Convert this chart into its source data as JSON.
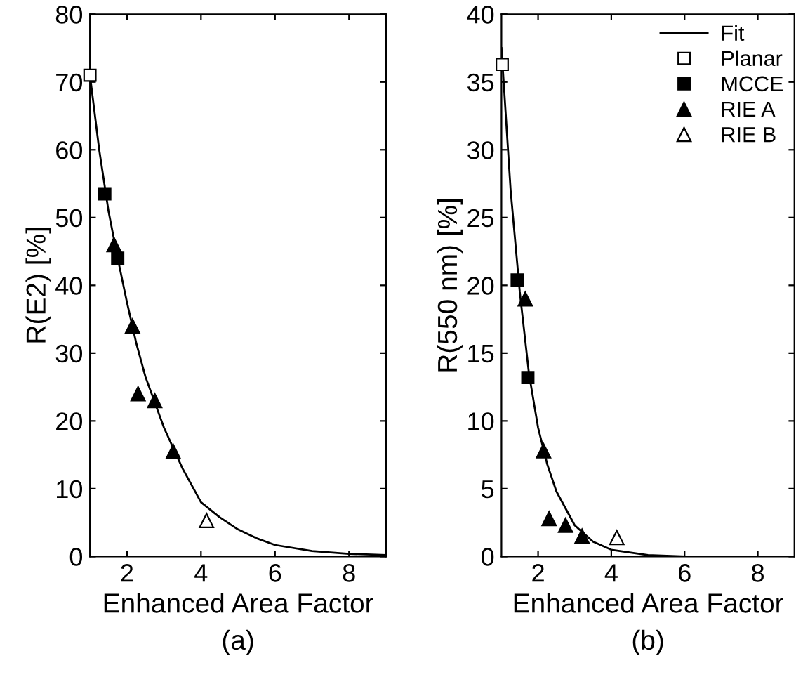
{
  "chart_data": [
    {
      "type": "scatter",
      "xlabel": "Enhanced Area Factor",
      "ylabel": "R(E2) [%]",
      "xlim": [
        1,
        9
      ],
      "ylim": [
        0,
        80
      ],
      "xticks": [
        2,
        4,
        6,
        8
      ],
      "yticks": [
        0,
        10,
        20,
        30,
        40,
        50,
        60,
        70,
        80
      ],
      "grid": false,
      "legend": false,
      "annotations": [
        "(a)"
      ],
      "series": [
        {
          "type": "line",
          "color": "#000000",
          "marker": "none",
          "line_style": "solid",
          "x": [
            1,
            1.25,
            1.5,
            1.75,
            2,
            2.25,
            2.5,
            3,
            3.5,
            4,
            4.5,
            5,
            5.5,
            6,
            7,
            8,
            9
          ],
          "values": [
            71,
            60,
            51,
            44,
            37.5,
            31.5,
            26.5,
            19,
            13,
            8,
            5.8,
            4,
            2.7,
            1.7,
            0.8,
            0.4,
            0.2
          ]
        },
        {
          "color": "#ffffff",
          "marker": "square",
          "x": [
            1
          ],
          "values": [
            71
          ]
        },
        {
          "color": "#000000",
          "marker": "square",
          "x": [
            1.4,
            1.75
          ],
          "values": [
            53.5,
            44
          ]
        },
        {
          "color": "#000000",
          "marker": "triangle",
          "x": [
            1.65,
            2.15,
            2.3,
            2.75,
            3.25
          ],
          "values": [
            46,
            34,
            24,
            23,
            15.5
          ]
        },
        {
          "color": "#ffffff",
          "marker": "triangle",
          "x": [
            4.15
          ],
          "values": [
            5.3
          ]
        }
      ]
    },
    {
      "type": "scatter",
      "xlabel": "Enhanced Area Factor",
      "ylabel": "R(550 nm) [%]",
      "xlim": [
        1,
        9
      ],
      "ylim": [
        0,
        40
      ],
      "xticks": [
        2,
        4,
        6,
        8
      ],
      "yticks": [
        0,
        5,
        10,
        15,
        20,
        25,
        30,
        35,
        40
      ],
      "grid": false,
      "legend": "top right",
      "annotations": [
        "(b)"
      ],
      "series": [
        {
          "name": "Fit",
          "type": "line",
          "color": "#000000",
          "marker": "none",
          "line_style": "solid",
          "x": [
            1,
            1.25,
            1.5,
            1.75,
            2,
            2.25,
            2.5,
            3,
            3.5,
            4,
            5,
            6
          ],
          "values": [
            37.5,
            27,
            19.5,
            13.5,
            9.5,
            6.8,
            4.8,
            2.3,
            1.1,
            0.5,
            0.1,
            0
          ]
        },
        {
          "name": "Planar",
          "color": "#ffffff",
          "marker": "square",
          "x": [
            1.02
          ],
          "values": [
            36.3
          ]
        },
        {
          "name": "MCCE",
          "color": "#000000",
          "marker": "square",
          "x": [
            1.43,
            1.72
          ],
          "values": [
            20.4,
            13.2
          ]
        },
        {
          "name": "RIE A",
          "color": "#000000",
          "marker": "triangle",
          "x": [
            1.65,
            2.15,
            2.3,
            2.75,
            3.2
          ],
          "values": [
            19,
            7.8,
            2.8,
            2.3,
            1.5
          ]
        },
        {
          "name": "RIE B",
          "color": "#ffffff",
          "marker": "triangle",
          "x": [
            4.15
          ],
          "values": [
            1.4
          ]
        }
      ]
    }
  ]
}
